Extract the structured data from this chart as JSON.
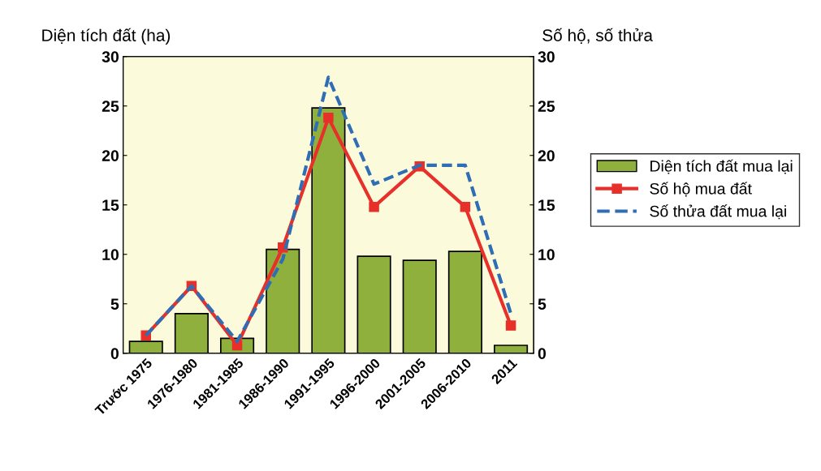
{
  "chart_data": {
    "type": "bar",
    "ylabel": "Diện tích đất (ha)",
    "y2label": "Số hộ, số thửa",
    "categories": [
      "Trước 1975",
      "1976-1980",
      "1981-1985",
      "1986-1990",
      "1991-1995",
      "1996-2000",
      "2001-2005",
      "2006-2010",
      "2011"
    ],
    "series": [
      {
        "name": "Diện tích đất mua lại",
        "color": "#8fb03c",
        "values": [
          1.2,
          4.0,
          1.5,
          10.5,
          24.8,
          9.8,
          9.4,
          10.3,
          0.8
        ]
      },
      {
        "name": "Số hộ mua đất",
        "type": "line",
        "axis": "y2",
        "color": "#e8302a",
        "marker": "square",
        "line_style": "solid",
        "values": [
          1.8,
          6.8,
          0.8,
          10.7,
          23.8,
          14.8,
          18.9,
          14.8,
          2.8
        ]
      },
      {
        "name": "Số thửa đất mua lại",
        "type": "line",
        "axis": "y2",
        "color": "#2f6db5",
        "marker": "none",
        "line_style": "dashed",
        "values": [
          1.8,
          6.8,
          1.2,
          9.5,
          27.9,
          17.1,
          19.0,
          19.0,
          4.0
        ]
      }
    ],
    "ylim": [
      0,
      30
    ],
    "yticks": [
      0,
      5,
      10,
      15,
      20,
      25,
      30
    ],
    "y2lim": [
      0,
      30
    ],
    "y2ticks": [
      0,
      5,
      10,
      15,
      20,
      25,
      30
    ],
    "grid": false,
    "legend": "right"
  }
}
